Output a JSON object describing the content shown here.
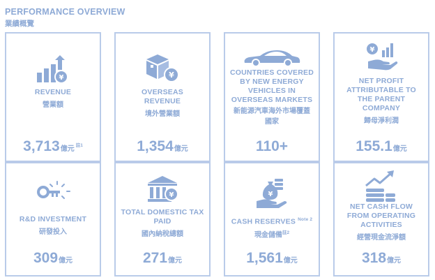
{
  "header": {
    "title_en": "PERFORMANCE OVERVIEW",
    "title_zh": "業績概覽"
  },
  "cards": [
    {
      "label_en": "REVENUE",
      "label_zh": "營業額",
      "value": "3,713",
      "unit": "億元",
      "note": "註1",
      "icon": "revenue-chart-yen-icon"
    },
    {
      "label_en": "OVERSEAS REVENUE",
      "label_zh": "境外營業額",
      "value": "1,354",
      "unit": "億元",
      "icon": "overseas-box-yen-icon"
    },
    {
      "label_en": "COUNTRIES COVERED BY NEW ENERGY VEHICLES IN OVERSEAS MARKETS",
      "label_zh": "新能源汽車海外市場覆蓋國家",
      "value": "110+",
      "icon": "car-icon"
    },
    {
      "label_en": "NET PROFIT ATTRIBUTABLE TO THE PARENT COMPANY",
      "label_zh": "歸母淨利潤",
      "value": "155.1",
      "unit": "億元",
      "icon": "hand-yen-chart-icon"
    },
    {
      "label_en": "R&D INVESTMENT",
      "label_zh": "研發投入",
      "value": "309",
      "unit": "億元",
      "icon": "key-bulb-icon"
    },
    {
      "label_en": "TOTAL DOMESTIC TAX PAID",
      "label_zh": "國內納稅總額",
      "value": "271",
      "unit": "億元",
      "icon": "bank-yen-icon"
    },
    {
      "label_en": "CASH RESERVES",
      "label_en_note": "Note 2",
      "label_zh": "現金儲備",
      "label_zh_note": "註2",
      "value": "1,561",
      "unit": "億元",
      "icon": "hand-moneybag-icon"
    },
    {
      "label_en": "NET CASH FLOW FROM OPERATING ACTIVITIES",
      "label_zh": "經營現金流淨額",
      "value": "318",
      "unit": "億元",
      "icon": "coins-arrow-up-icon"
    }
  ],
  "colors": {
    "text": "#8eaad6",
    "border": "#b9cbe9",
    "icon": "#8eaad6"
  }
}
